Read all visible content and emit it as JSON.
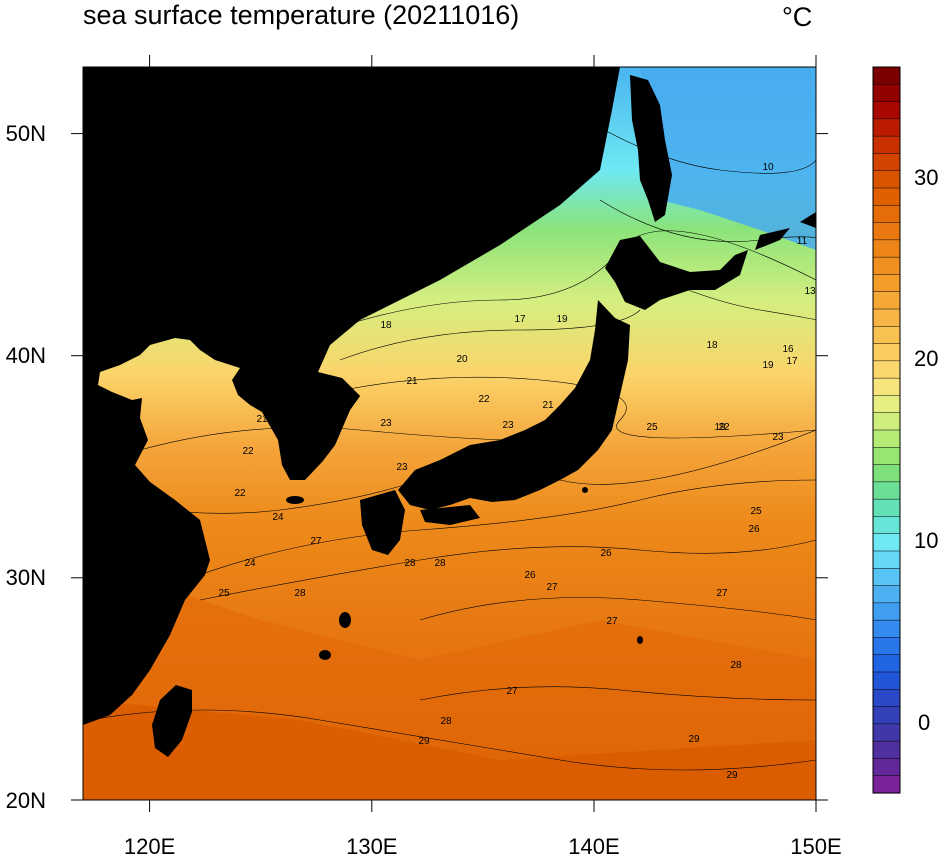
{
  "title": "sea surface temperature (20211016)",
  "unit_label": "°C",
  "map": {
    "lon_ticks": [
      "120E",
      "130E",
      "140E",
      "150E"
    ],
    "lat_ticks": [
      "50N",
      "40N",
      "30N",
      "20N"
    ],
    "lon_range": [
      117,
      150
    ],
    "lat_range": [
      20,
      53
    ],
    "land_color": "#000000"
  },
  "colorbar": {
    "labels": [
      "30",
      "20",
      "10",
      "0"
    ],
    "colors_top_to_bottom": [
      "#7a0000",
      "#930000",
      "#a80800",
      "#bb1c00",
      "#c83000",
      "#d24400",
      "#da5400",
      "#e06000",
      "#e56c08",
      "#e97810",
      "#ed8418",
      "#f09020",
      "#f49c2a",
      "#f6a836",
      "#f8b444",
      "#f9c052",
      "#fbcc60",
      "#fbd86e",
      "#f6e47c",
      "#e6ee82",
      "#cdee7c",
      "#b4ec76",
      "#98e672",
      "#7ee07a",
      "#6cde96",
      "#64e0b6",
      "#66e4d6",
      "#6ee8f2",
      "#64d8f6",
      "#58c4f4",
      "#4cb0f2",
      "#409ef0",
      "#348aee",
      "#2876ea",
      "#2064e4",
      "#2256d8",
      "#2a48c8",
      "#3440b8",
      "#4038a8",
      "#50309e",
      "#62289a",
      "#7a2298"
    ]
  },
  "contour_labels": [
    "10",
    "11",
    "13",
    "16",
    "17",
    "17",
    "18",
    "18",
    "19",
    "19",
    "19",
    "20",
    "20",
    "21",
    "21",
    "21",
    "22",
    "22",
    "22",
    "22",
    "23",
    "23",
    "23",
    "23",
    "24",
    "24",
    "25",
    "25",
    "25",
    "26",
    "26",
    "26",
    "27",
    "27",
    "27",
    "27",
    "27",
    "28",
    "28",
    "28",
    "28",
    "28",
    "29",
    "29",
    "29"
  ]
}
